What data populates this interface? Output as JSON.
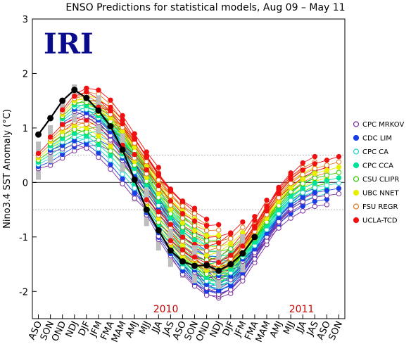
{
  "chart_data": {
    "type": "line",
    "title": "ENSO Predictions for statistical models, Aug 09 – May 11",
    "ylabel": "Nino3.4 SST Anomaly (°C)",
    "xlabel": "",
    "logo": "IRI",
    "ylim": [
      -2.5,
      3
    ],
    "yticks": [
      -2,
      -1,
      0,
      1,
      2,
      3
    ],
    "categories": [
      "ASO",
      "SON",
      "OND",
      "NDJ",
      "DJF",
      "JFM",
      "FMA",
      "MAM",
      "AMJ",
      "MJJ",
      "JJA",
      "JAS",
      "ASO",
      "SON",
      "OND",
      "NDJ",
      "DJF",
      "JFM",
      "FMA",
      "MAM",
      "AMJ",
      "MJJ",
      "JJA",
      "JAS",
      "ASO",
      "SON"
    ],
    "year_labels": [
      {
        "text": "2010",
        "at": 10.6
      },
      {
        "text": "2011",
        "at": 21.9
      }
    ],
    "reference_lines": [
      0.5,
      -0.5
    ],
    "legend_position": "right",
    "colors": {
      "observed": "#000000",
      "year_label": "#cc0000",
      "ribbon": "#bdbdbd"
    },
    "observed": {
      "x_index": [
        0,
        1,
        2,
        3,
        4,
        5,
        6,
        7,
        8,
        9,
        10,
        11,
        12,
        13,
        14,
        15,
        16,
        17,
        18
      ],
      "values": [
        0.88,
        1.18,
        1.5,
        1.7,
        1.55,
        1.32,
        1.03,
        0.6,
        0.05,
        -0.5,
        -0.88,
        -1.25,
        -1.45,
        -1.53,
        -1.52,
        -1.62,
        -1.5,
        -1.3,
        -1.0
      ]
    },
    "series": [
      {
        "name": "CPC MRKOV",
        "color": "#7b2fa0",
        "marker": "open"
      },
      {
        "name": "CDC LIM",
        "color": "#1a3ee6",
        "marker": "filled"
      },
      {
        "name": "CPC CA",
        "color": "#22d4cf",
        "marker": "open"
      },
      {
        "name": "CPC CCA",
        "color": "#00e39a",
        "marker": "filled"
      },
      {
        "name": "CSU CLIPR",
        "color": "#33cc00",
        "marker": "open"
      },
      {
        "name": "UBC NNET",
        "color": "#e6f000",
        "marker": "filled"
      },
      {
        "name": "FSU REGR",
        "color": "#e07a20",
        "marker": "open"
      },
      {
        "name": "UCLA-TCD",
        "color": "#ee1111",
        "marker": "filled"
      }
    ],
    "forecast_runs": [
      {
        "start": 0,
        "values": [
          0.4,
          0.55,
          0.7,
          0.85,
          0.95,
          1.0,
          0.9,
          0.7,
          0.45
        ]
      },
      {
        "start": 2,
        "values": [
          1.2,
          1.4,
          1.5,
          1.45,
          1.25,
          0.95,
          0.6,
          0.25,
          -0.05
        ]
      },
      {
        "start": 4,
        "values": [
          1.35,
          1.3,
          1.15,
          0.9,
          0.55,
          0.2,
          -0.15,
          -0.45,
          -0.7
        ]
      },
      {
        "start": 6,
        "values": [
          0.95,
          0.8,
          0.55,
          0.25,
          -0.1,
          -0.4,
          -0.65,
          -0.85,
          -1.0
        ]
      },
      {
        "start": 8,
        "values": [
          0.0,
          -0.3,
          -0.6,
          -0.85,
          -1.05,
          -1.2,
          -1.3,
          -1.3,
          -1.25
        ]
      },
      {
        "start": 10,
        "values": [
          -0.9,
          -1.15,
          -1.4,
          -1.6,
          -1.7,
          -1.65,
          -1.5,
          -1.25,
          -0.95
        ]
      },
      {
        "start": 12,
        "values": [
          -1.4,
          -1.6,
          -1.8,
          -1.85,
          -1.75,
          -1.5,
          -1.15,
          -0.8,
          -0.45
        ]
      },
      {
        "start": 14,
        "values": [
          -1.5,
          -1.65,
          -1.6,
          -1.35,
          -1.05,
          -0.75,
          -0.45,
          -0.2,
          -0.05
        ]
      },
      {
        "start": 16,
        "values": [
          -1.45,
          -1.3,
          -1.05,
          -0.8,
          -0.55,
          -0.35,
          -0.2,
          -0.1,
          -0.05
        ]
      },
      {
        "start": 1,
        "values": [
          0.7,
          0.85,
          0.95,
          0.9,
          0.75,
          0.55,
          0.3,
          0.05,
          -0.15
        ]
      },
      {
        "start": 3,
        "values": [
          1.45,
          1.45,
          1.3,
          1.05,
          0.75,
          0.4,
          0.05,
          -0.25,
          -0.45
        ]
      },
      {
        "start": 5,
        "values": [
          1.25,
          1.1,
          0.85,
          0.55,
          0.2,
          -0.15,
          -0.45,
          -0.65,
          -0.8
        ]
      },
      {
        "start": 7,
        "values": [
          0.55,
          0.3,
          0.0,
          -0.3,
          -0.6,
          -0.85,
          -1.0,
          -1.1,
          -1.1
        ]
      },
      {
        "start": 9,
        "values": [
          -0.45,
          -0.75,
          -1.0,
          -1.25,
          -1.4,
          -1.45,
          -1.4,
          -1.25,
          -1.05
        ]
      },
      {
        "start": 11,
        "values": [
          -1.2,
          -1.45,
          -1.65,
          -1.8,
          -1.8,
          -1.65,
          -1.35,
          -1.0,
          -0.65
        ]
      },
      {
        "start": 13,
        "values": [
          -1.5,
          -1.7,
          -1.8,
          -1.7,
          -1.45,
          -1.1,
          -0.75,
          -0.4,
          -0.15
        ]
      },
      {
        "start": 15,
        "values": [
          -1.6,
          -1.55,
          -1.35,
          -1.05,
          -0.7,
          -0.4,
          -0.15,
          0.05,
          0.15
        ]
      },
      {
        "start": 17,
        "values": [
          -1.3,
          -1.05,
          -0.75,
          -0.45,
          -0.2,
          -0.05,
          0.05,
          0.1,
          0.15
        ]
      }
    ]
  }
}
